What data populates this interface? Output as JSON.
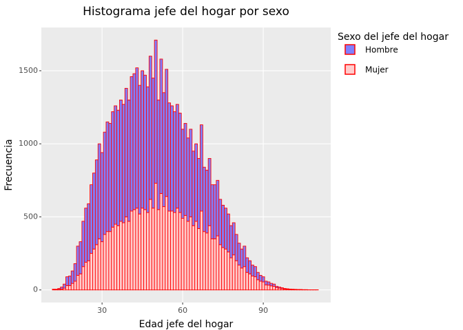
{
  "chart_data": {
    "type": "histogram",
    "title": "Histograma jefe del hogar por sexo",
    "x_label": "Edad jefe del hogar",
    "y_label": "Frecuencia",
    "legend_title": "Sexo del jefe del hogar",
    "legend": "right",
    "grid": true,
    "edgecolor": "#ff0000",
    "bins": [
      11.5,
      12.5,
      13.5,
      14.5,
      15.5,
      16.5,
      17.5,
      18.5,
      19.5,
      20.5,
      21.5,
      22.5,
      23.5,
      24.5,
      25.5,
      26.5,
      27.5,
      28.5,
      29.5,
      30.5,
      31.5,
      32.5,
      33.5,
      34.5,
      35.5,
      36.5,
      37.5,
      38.5,
      39.5,
      40.5,
      41.5,
      42.5,
      43.5,
      44.5,
      45.5,
      46.5,
      47.5,
      48.5,
      49.5,
      50.5,
      51.5,
      52.5,
      53.5,
      54.5,
      55.5,
      56.5,
      57.5,
      58.5,
      59.5,
      60.5,
      61.5,
      62.5,
      63.5,
      64.5,
      65.5,
      66.5,
      67.5,
      68.5,
      69.5,
      70.5,
      71.5,
      72.5,
      73.5,
      74.5,
      75.5,
      76.5,
      77.5,
      78.5,
      79.5,
      80.5,
      81.5,
      82.5,
      83.5,
      84.5,
      85.5,
      86.5,
      87.5,
      88.5,
      89.5,
      90.5,
      91.5,
      92.5,
      93.5,
      94.5,
      95.5,
      96.5,
      97.5,
      98.5,
      99.5,
      100.5,
      101.5,
      102.5,
      103.5,
      104.5,
      105.5,
      106.5,
      107.5,
      108.5,
      109.5,
      110.5
    ],
    "series": [
      {
        "name": "Hombre",
        "color": "#8080ff",
        "values": [
          3,
          3,
          6,
          14,
          28,
          60,
          65,
          85,
          120,
          200,
          220,
          310,
          370,
          390,
          470,
          520,
          580,
          650,
          610,
          700,
          750,
          740,
          790,
          810,
          790,
          830,
          810,
          880,
          830,
          920,
          930,
          960,
          880,
          940,
          920,
          860,
          980,
          890,
          980,
          750,
          920,
          780,
          870,
          740,
          720,
          690,
          710,
          680,
          610,
          630,
          570,
          600,
          510,
          530,
          480,
          590,
          440,
          430,
          460,
          370,
          370,
          380,
          310,
          290,
          280,
          260,
          220,
          220,
          180,
          150,
          130,
          140,
          100,
          90,
          75,
          70,
          50,
          40,
          35,
          25,
          22,
          17,
          15,
          10,
          8,
          6,
          4,
          3,
          2,
          2,
          1,
          1,
          1,
          1,
          1,
          0,
          0,
          1,
          0
        ]
      },
      {
        "name": "Mujer",
        "color": "#ffcccc",
        "values": [
          2,
          2,
          4,
          6,
          12,
          30,
          30,
          45,
          60,
          100,
          110,
          160,
          190,
          200,
          250,
          280,
          310,
          350,
          330,
          380,
          400,
          400,
          430,
          450,
          440,
          470,
          460,
          500,
          470,
          540,
          550,
          560,
          520,
          560,
          550,
          530,
          620,
          560,
          730,
          550,
          660,
          570,
          640,
          540,
          540,
          530,
          560,
          530,
          490,
          510,
          470,
          500,
          440,
          470,
          420,
          540,
          400,
          390,
          440,
          350,
          350,
          370,
          310,
          290,
          280,
          260,
          220,
          240,
          200,
          170,
          150,
          160,
          120,
          110,
          95,
          90,
          70,
          60,
          55,
          35,
          33,
          28,
          25,
          15,
          12,
          9,
          6,
          5,
          4,
          3,
          3,
          2,
          2,
          1,
          1,
          1,
          1,
          0,
          1
        ]
      }
    ],
    "xlim": [
      7.4,
      115.1
    ],
    "xticks": [
      30,
      60,
      90
    ],
    "ylim": [
      -86,
      1796
    ],
    "yticks": [
      0,
      500,
      1000,
      1500
    ]
  }
}
